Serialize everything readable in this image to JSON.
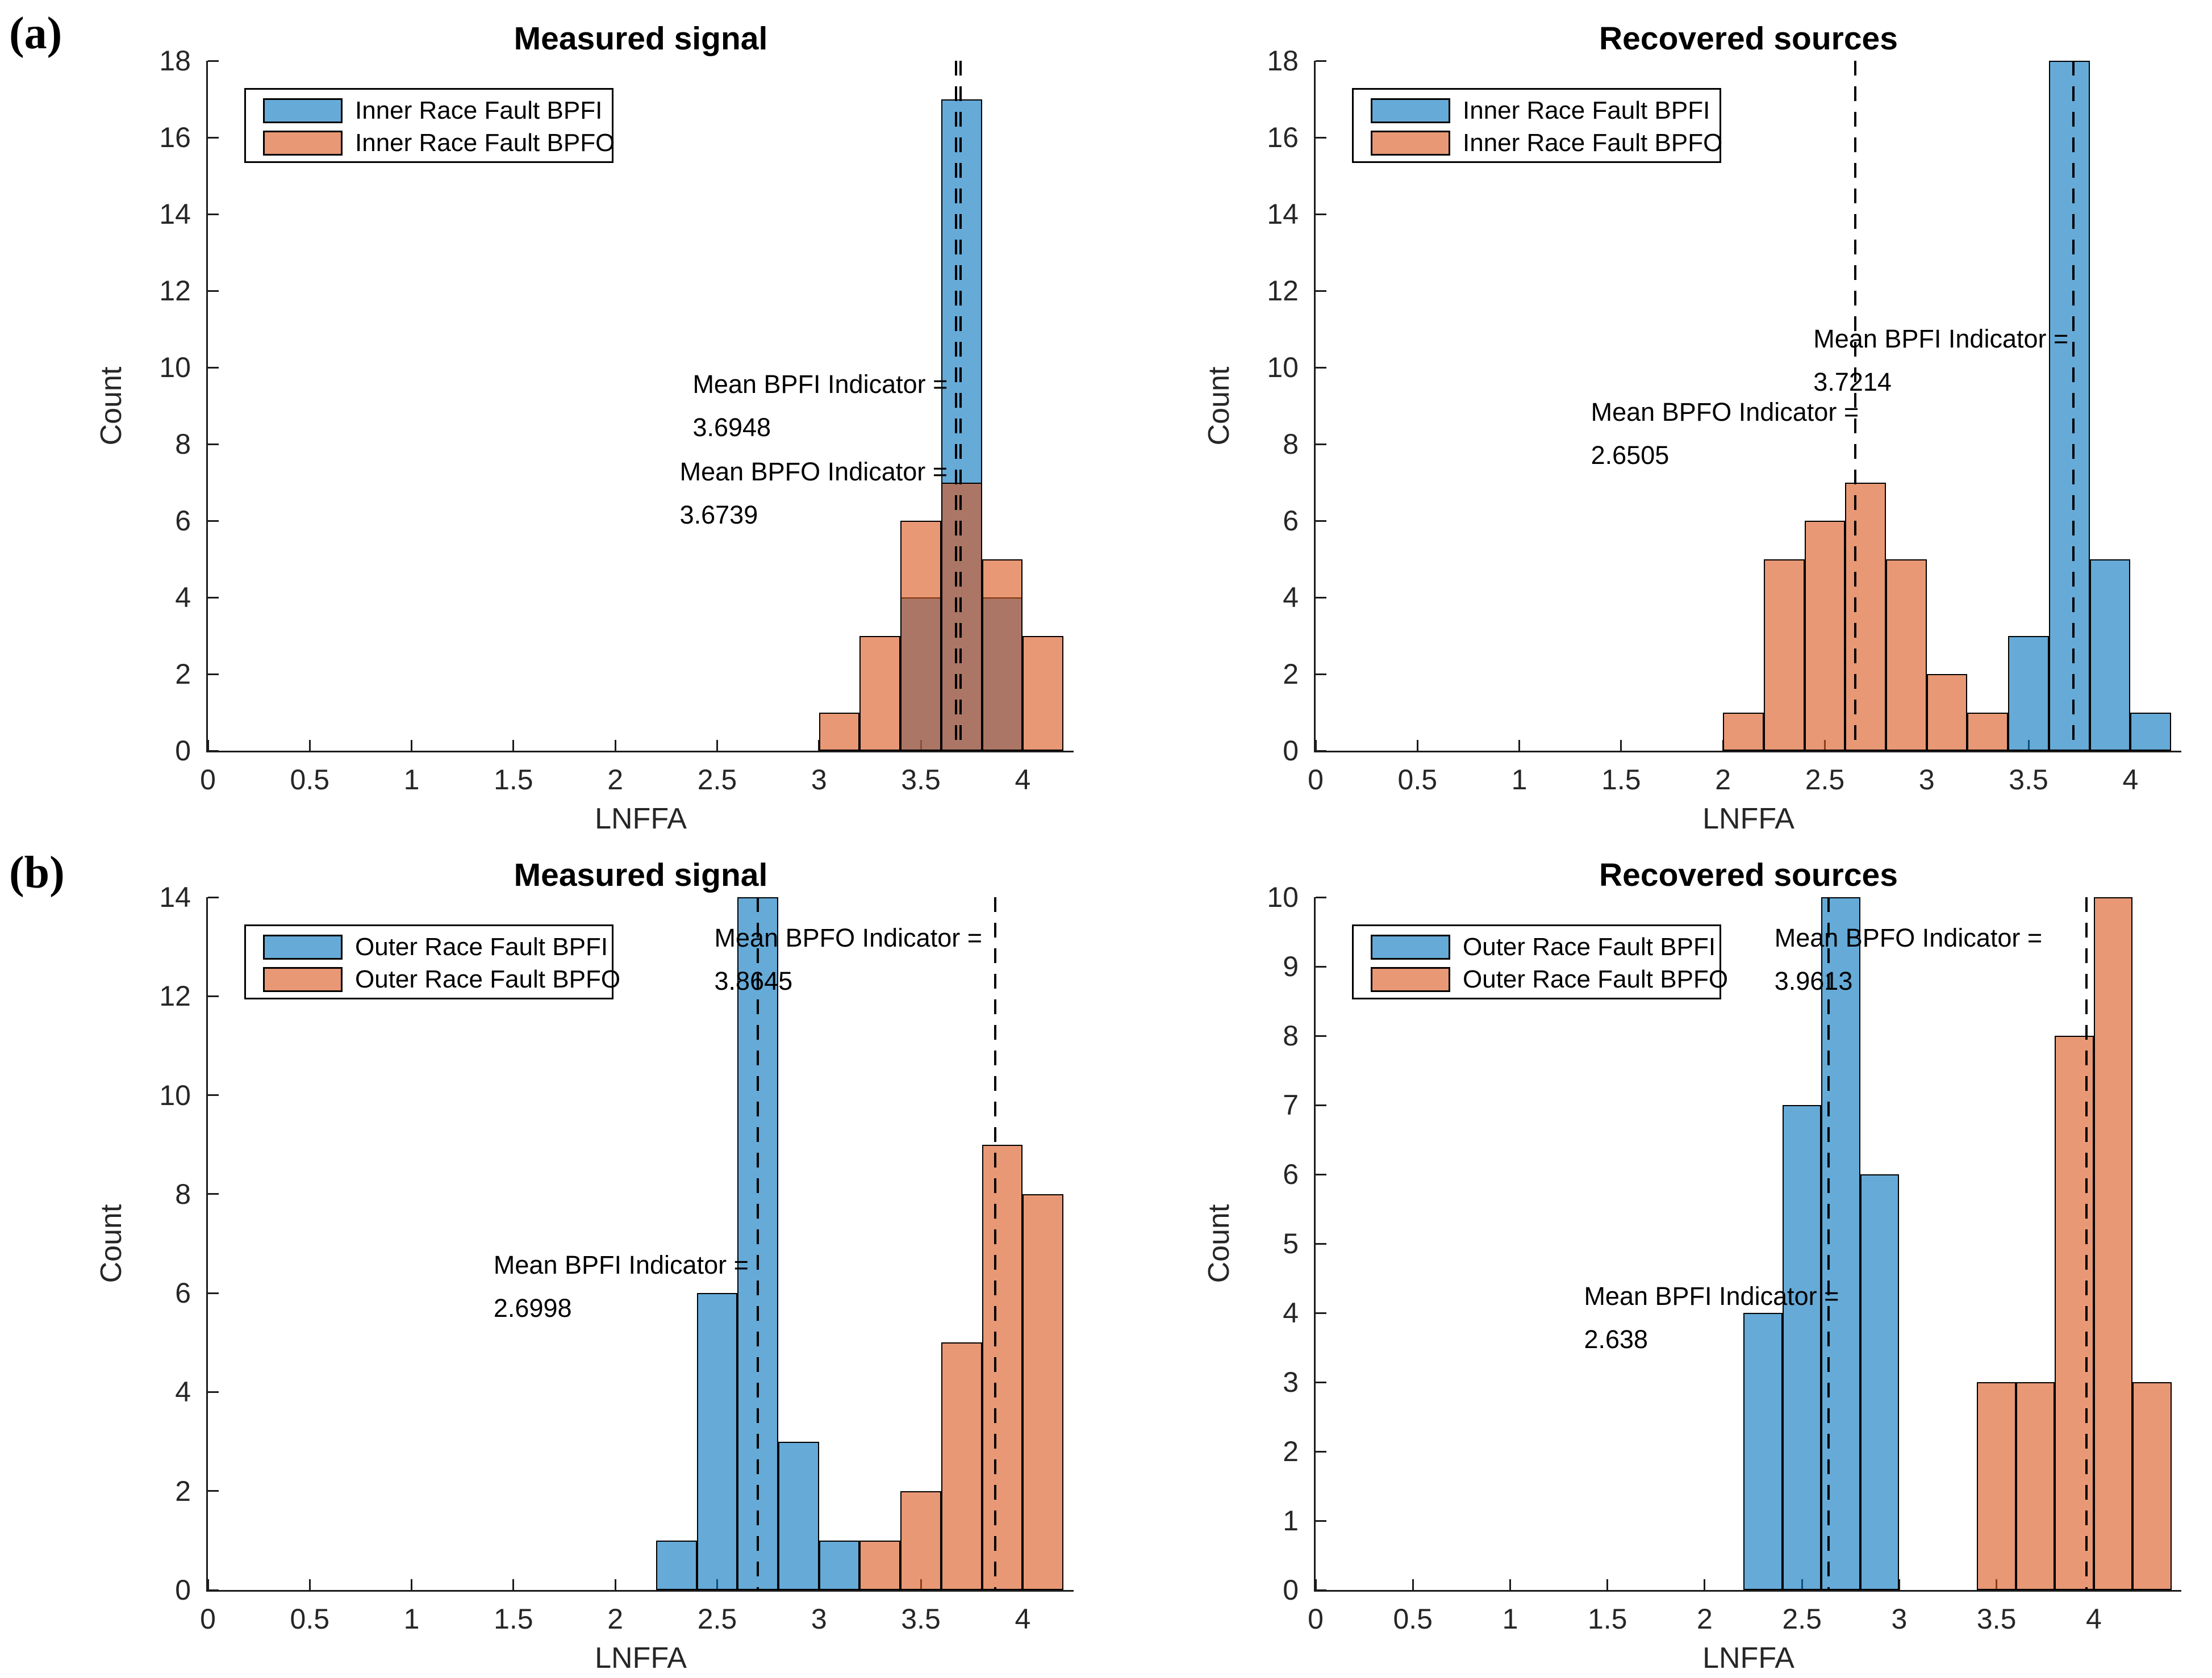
{
  "panel_labels": {
    "a": "(a)",
    "b": "(b)"
  },
  "colors": {
    "bpfi_base": "#0072BD",
    "bpfo_base": "#D95319",
    "face_alpha": 0.6,
    "bpfi_fill_on_white": "#66AAD7",
    "bpfo_fill_on_white": "#E89875",
    "overlap_fill": "#AB7665",
    "bar_edge": "#000000",
    "axis_line": "#1C1C1C",
    "tick_label": "#262626",
    "text": "#000000",
    "background": "#FFFFFF"
  },
  "chart_data": [
    {
      "panel": "a",
      "side": "left",
      "type": "histogram",
      "title": "Measured signal",
      "xlabel": "LNFFA",
      "ylabel": "Count",
      "xlim": [
        0,
        4.25
      ],
      "ylim": [
        0,
        18
      ],
      "xticks": [
        0,
        0.5,
        1,
        1.5,
        2,
        2.5,
        3,
        3.5,
        4
      ],
      "yticks": [
        0,
        2,
        4,
        6,
        8,
        10,
        12,
        14,
        16,
        18
      ],
      "bin_width": 0.2,
      "grid": false,
      "legend_position": "northwest-inside",
      "series": [
        {
          "name": "Inner Race Fault BPFI",
          "color": "bpfi",
          "bins": [
            {
              "x0": 3.4,
              "count": 4
            },
            {
              "x0": 3.6,
              "count": 17
            },
            {
              "x0": 3.8,
              "count": 4
            }
          ]
        },
        {
          "name": "Inner Race Fault BPFO",
          "color": "bpfo",
          "bins": [
            {
              "x0": 3.0,
              "count": 1
            },
            {
              "x0": 3.2,
              "count": 3
            },
            {
              "x0": 3.4,
              "count": 6
            },
            {
              "x0": 3.6,
              "count": 7
            },
            {
              "x0": 3.8,
              "count": 5
            },
            {
              "x0": 4.0,
              "count": 3
            }
          ]
        }
      ],
      "mean_lines": [
        {
          "name": "BPFI mean",
          "value": 3.6948
        },
        {
          "name": "BPFO mean",
          "value": 3.6739
        }
      ],
      "annotations": [
        {
          "lines": [
            "Mean BPFI Indicator =",
            "3.6948"
          ],
          "fx": 0.56,
          "fy": 0.438
        },
        {
          "lines": [
            "Mean BPFO Indicator =",
            "3.6739"
          ],
          "fx": 0.545,
          "fy": 0.565
        }
      ]
    },
    {
      "panel": "a",
      "side": "right",
      "type": "histogram",
      "title": "Recovered sources",
      "xlabel": "LNFFA",
      "ylabel": "Count",
      "xlim": [
        0,
        4.25
      ],
      "ylim": [
        0,
        18
      ],
      "xticks": [
        0,
        0.5,
        1,
        1.5,
        2,
        2.5,
        3,
        3.5,
        4
      ],
      "yticks": [
        0,
        2,
        4,
        6,
        8,
        10,
        12,
        14,
        16,
        18
      ],
      "bin_width": 0.2,
      "grid": false,
      "legend_position": "northwest-inside",
      "series": [
        {
          "name": "Inner Race Fault BPFI",
          "color": "bpfi",
          "bins": [
            {
              "x0": 3.4,
              "count": 3
            },
            {
              "x0": 3.6,
              "count": 18
            },
            {
              "x0": 3.8,
              "count": 5
            },
            {
              "x0": 4.0,
              "count": 1
            }
          ]
        },
        {
          "name": "Inner Race Fault BPFO",
          "color": "bpfo",
          "bins": [
            {
              "x0": 2.0,
              "count": 1
            },
            {
              "x0": 2.2,
              "count": 5
            },
            {
              "x0": 2.4,
              "count": 6
            },
            {
              "x0": 2.6,
              "count": 7
            },
            {
              "x0": 2.8,
              "count": 5
            },
            {
              "x0": 3.0,
              "count": 2
            },
            {
              "x0": 3.2,
              "count": 1
            }
          ]
        }
      ],
      "mean_lines": [
        {
          "name": "BPFI mean",
          "value": 3.7214
        },
        {
          "name": "BPFO mean",
          "value": 2.6505
        }
      ],
      "annotations": [
        {
          "lines": [
            "Mean BPFI Indicator =",
            "3.7214"
          ],
          "fx": 0.575,
          "fy": 0.372
        },
        {
          "lines": [
            "Mean BPFO Indicator =",
            "2.6505"
          ],
          "fx": 0.318,
          "fy": 0.478
        }
      ]
    },
    {
      "panel": "b",
      "side": "left",
      "type": "histogram",
      "title": "Measured signal",
      "xlabel": "LNFFA",
      "ylabel": "Count",
      "xlim": [
        0,
        4.25
      ],
      "ylim": [
        0,
        14
      ],
      "xticks": [
        0,
        0.5,
        1,
        1.5,
        2,
        2.5,
        3,
        3.5,
        4
      ],
      "yticks": [
        0,
        2,
        4,
        6,
        8,
        10,
        12,
        14
      ],
      "bin_width": 0.2,
      "grid": false,
      "legend_position": "northwest-inside",
      "series": [
        {
          "name": "Outer Race Fault BPFI",
          "color": "bpfi",
          "bins": [
            {
              "x0": 2.2,
              "count": 1
            },
            {
              "x0": 2.4,
              "count": 6
            },
            {
              "x0": 2.6,
              "count": 14
            },
            {
              "x0": 2.8,
              "count": 3
            },
            {
              "x0": 3.0,
              "count": 1
            }
          ]
        },
        {
          "name": "Outer Race Fault BPFO",
          "color": "bpfo",
          "bins": [
            {
              "x0": 3.2,
              "count": 1
            },
            {
              "x0": 3.4,
              "count": 2
            },
            {
              "x0": 3.6,
              "count": 5
            },
            {
              "x0": 3.8,
              "count": 9
            },
            {
              "x0": 4.0,
              "count": 8
            }
          ]
        }
      ],
      "mean_lines": [
        {
          "name": "BPFI mean",
          "value": 2.6998
        },
        {
          "name": "BPFO mean",
          "value": 3.8645
        }
      ],
      "annotations": [
        {
          "lines": [
            "Mean BPFO Indicator =",
            "3.8645"
          ],
          "fx": 0.585,
          "fy": 0.028
        },
        {
          "lines": [
            "Mean BPFI Indicator =",
            "2.6998"
          ],
          "fx": 0.33,
          "fy": 0.5
        }
      ]
    },
    {
      "panel": "b",
      "side": "right",
      "type": "histogram",
      "title": "Recovered sources",
      "xlabel": "LNFFA",
      "ylabel": "Count",
      "xlim": [
        0,
        4.45
      ],
      "ylim": [
        0,
        10
      ],
      "xticks": [
        0,
        0.5,
        1,
        1.5,
        2,
        2.5,
        3,
        3.5,
        4
      ],
      "yticks": [
        0,
        1,
        2,
        3,
        4,
        5,
        6,
        7,
        8,
        9,
        10
      ],
      "bin_width": 0.2,
      "grid": false,
      "legend_position": "northwest-inside",
      "series": [
        {
          "name": "Outer Race Fault BPFI",
          "color": "bpfi",
          "bins": [
            {
              "x0": 2.2,
              "count": 4
            },
            {
              "x0": 2.4,
              "count": 7
            },
            {
              "x0": 2.6,
              "count": 10
            },
            {
              "x0": 2.8,
              "count": 6
            }
          ]
        },
        {
          "name": "Outer Race Fault BPFO",
          "color": "bpfo",
          "bins": [
            {
              "x0": 3.4,
              "count": 3
            },
            {
              "x0": 3.6,
              "count": 3
            },
            {
              "x0": 3.8,
              "count": 8
            },
            {
              "x0": 4.0,
              "count": 10
            },
            {
              "x0": 4.2,
              "count": 3
            }
          ]
        }
      ],
      "mean_lines": [
        {
          "name": "BPFI mean",
          "value": 2.638
        },
        {
          "name": "BPFO mean",
          "value": 3.9613
        }
      ],
      "annotations": [
        {
          "lines": [
            "Mean BPFO Indicator =",
            "3.9613"
          ],
          "fx": 0.53,
          "fy": 0.028
        },
        {
          "lines": [
            "Mean BPFI Indicator =",
            "2.638"
          ],
          "fx": 0.31,
          "fy": 0.545
        }
      ]
    }
  ]
}
